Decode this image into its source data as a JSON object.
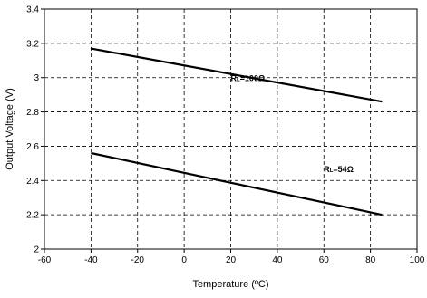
{
  "chart_data": {
    "type": "line",
    "title": "",
    "xlabel": "Temperature (ºC)",
    "ylabel": "Output Voltage (V)",
    "xlim": [
      -60,
      100
    ],
    "ylim": [
      2,
      3.4
    ],
    "xticks": [
      -60,
      -40,
      -20,
      0,
      20,
      40,
      60,
      80,
      100
    ],
    "yticks": [
      2,
      2.2,
      2.4,
      2.6,
      2.8,
      3,
      3.2,
      3.4
    ],
    "xtick_labels": [
      "-60",
      "-40",
      "-20",
      "0",
      "20",
      "40",
      "60",
      "80",
      "100"
    ],
    "ytick_labels": [
      "2",
      "2.2",
      "2.4",
      "2.6",
      "2.8",
      "3",
      "3.2",
      "3.4"
    ],
    "grid": true,
    "grid_style": "dashed",
    "legend": "none",
    "series": [
      {
        "name": "RL=100Ω",
        "label_main": "R",
        "label_sub": "L",
        "label_rest": "=100Ω",
        "x": [
          -40,
          85
        ],
        "y": [
          3.17,
          2.86
        ],
        "color": "#000000",
        "label_at": [
          20,
          2.98
        ]
      },
      {
        "name": "RL=54Ω",
        "label_main": "R",
        "label_sub": "L",
        "label_rest": "=54Ω",
        "x": [
          -40,
          85
        ],
        "y": [
          2.56,
          2.2
        ],
        "color": "#000000",
        "label_at": [
          60,
          2.45
        ]
      }
    ]
  }
}
